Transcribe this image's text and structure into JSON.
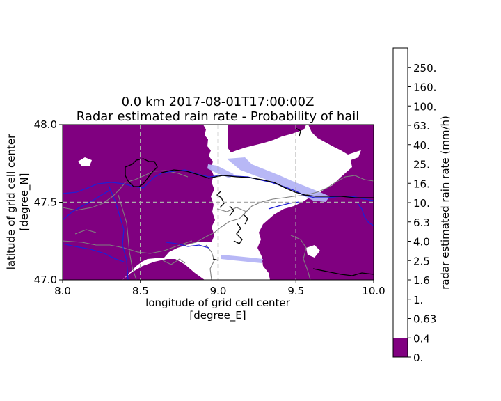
{
  "chart_data": {
    "type": "heatmap",
    "title_line1": "0.0 km 2017-08-01T17:00:00Z",
    "title_line2": "Radar estimated rain rate - Probability of hail",
    "xlabel_line1": "longitude of grid cell center",
    "xlabel_line2": "[degree_E]",
    "ylabel_line1": "latitude of grid cell center",
    "ylabel_line2": "[degree_N]",
    "xlim": [
      8.0,
      10.0
    ],
    "ylim": [
      47.0,
      48.0
    ],
    "x_ticks": [
      "8.0",
      "8.5",
      "9.0",
      "9.5",
      "10.0"
    ],
    "x_tick_values": [
      8.0,
      8.5,
      9.0,
      9.5,
      10.0
    ],
    "y_ticks": [
      "47.0",
      "47.5",
      "48.0"
    ],
    "y_tick_values": [
      47.0,
      47.5,
      48.0
    ],
    "grid": "dashed at 0.5 degree",
    "colors": {
      "no_rain": "#800080",
      "rain": "#ffffff",
      "hail_probability": "#b4b4f5",
      "rivers": "#1f1fd6",
      "borders": "#000000",
      "lakes_outline": "#808080",
      "grid": "#aaaaaa"
    },
    "colorbar": {
      "label": "radar estimated rain rate (mm/h)",
      "ticks": [
        "0.",
        "0.4",
        "0.63",
        "1.",
        "1.6",
        "2.5",
        "4.0",
        "6.3",
        "10.",
        "16.",
        "25.",
        "40.",
        "63.",
        "100.",
        "160.",
        "250."
      ],
      "segment_colors": [
        "#800080",
        "#ffffff",
        "#ffffff",
        "#ffffff",
        "#ffffff",
        "#ffffff",
        "#ffffff",
        "#ffffff",
        "#ffffff",
        "#ffffff",
        "#ffffff",
        "#ffffff",
        "#ffffff",
        "#ffffff",
        "#ffffff",
        "#ffffff"
      ]
    }
  }
}
